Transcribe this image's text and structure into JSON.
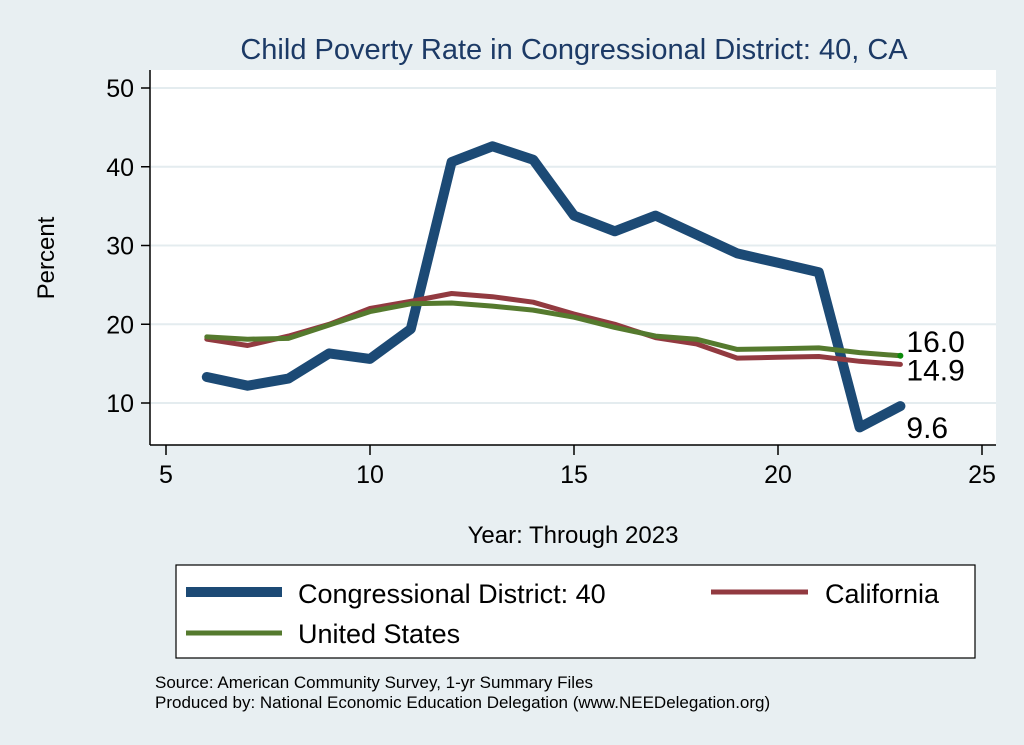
{
  "chart_data": {
    "type": "line",
    "title": "Child Poverty Rate in Congressional District:  40, CA",
    "xlabel": "Year: Through 2023",
    "ylabel": "Percent",
    "xlim": [
      5,
      25
    ],
    "ylim": [
      5,
      51
    ],
    "xticks": [
      5,
      10,
      15,
      20,
      25
    ],
    "yticks": [
      10,
      20,
      30,
      40,
      50
    ],
    "grid": "horizontal",
    "legend_position": "bottom",
    "x": [
      6,
      7,
      8,
      9,
      10,
      11,
      12,
      13,
      14,
      15,
      16,
      17,
      18,
      19,
      20,
      21,
      22,
      23
    ],
    "series": [
      {
        "name": "Congressional District:  40",
        "color": "#1c4a75",
        "values": [
          13.3,
          12.2,
          13.1,
          16.3,
          15.6,
          19.4,
          40.6,
          42.6,
          40.9,
          33.8,
          31.8,
          33.8,
          31.4,
          29.0,
          27.8,
          26.6,
          6.9,
          9.6
        ],
        "end_label": "9.6"
      },
      {
        "name": "California",
        "color": "#923a40",
        "values": [
          18.1,
          17.3,
          18.5,
          20.0,
          22.0,
          22.9,
          23.9,
          23.5,
          22.8,
          21.3,
          20.0,
          18.3,
          17.5,
          15.7,
          15.8,
          15.9,
          15.3,
          14.9
        ],
        "end_label": "14.9"
      },
      {
        "name": "United States",
        "color": "#557a2e",
        "values": [
          18.4,
          18.1,
          18.2,
          19.9,
          21.6,
          22.6,
          22.7,
          22.3,
          21.8,
          20.9,
          19.6,
          18.5,
          18.1,
          16.8,
          16.9,
          17.0,
          16.4,
          16.0
        ],
        "end_label": "16.0"
      }
    ],
    "notes": [
      "Source: American Community Survey, 1-yr Summary Files",
      "Produced by: National Economic Education Delegation (www.NEEDelegation.org)"
    ]
  }
}
